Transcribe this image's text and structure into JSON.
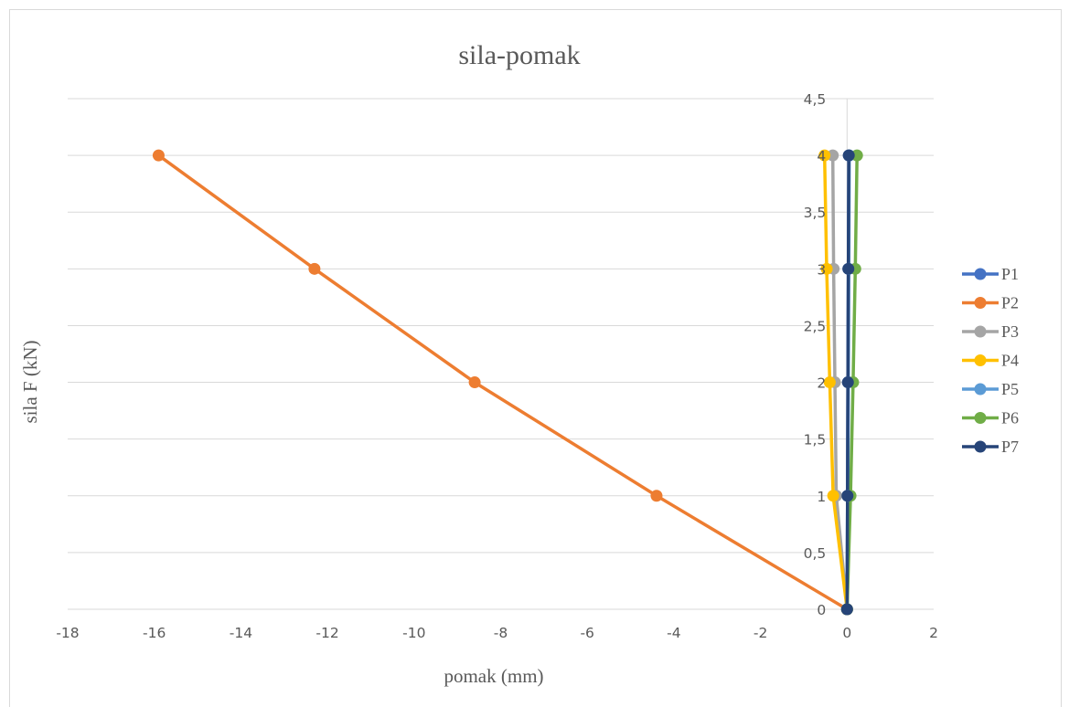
{
  "chart_data": {
    "type": "scatter",
    "title": "sila-pomak",
    "xlabel": "pomak (mm)",
    "ylabel": "sila F (kN)",
    "xlim": [
      -18,
      2
    ],
    "ylim": [
      0,
      4.5
    ],
    "x_ticks": [
      "-18",
      "-16",
      "-14",
      "-12",
      "-10",
      "-8",
      "-6",
      "-4",
      "-2",
      "0",
      "2"
    ],
    "y_ticks": [
      "0",
      "0,5",
      "1",
      "1,5",
      "2",
      "2,5",
      "3",
      "3,5",
      "4",
      "4,5"
    ],
    "grid": "horizontal",
    "legend_position": "right",
    "series": [
      {
        "name": "P1",
        "color": "#4472c4",
        "x": [
          0,
          0.01,
          0.02,
          0.03,
          0.04
        ],
        "y": [
          0,
          1,
          2,
          3,
          4
        ]
      },
      {
        "name": "P2",
        "color": "#ed7d31",
        "x": [
          0,
          -4.4,
          -8.6,
          -12.3,
          -15.9
        ],
        "y": [
          0,
          1,
          2,
          3,
          4
        ]
      },
      {
        "name": "P3",
        "color": "#a5a5a5",
        "x": [
          0,
          -0.25,
          -0.28,
          -0.31,
          -0.33
        ],
        "y": [
          0,
          1,
          2,
          3,
          4
        ]
      },
      {
        "name": "P4",
        "color": "#ffc000",
        "x": [
          0,
          -0.32,
          -0.4,
          -0.47,
          -0.52
        ],
        "y": [
          0,
          1,
          2,
          3,
          4
        ]
      },
      {
        "name": "P5",
        "color": "#5b9bd5",
        "x": [
          0,
          0.02,
          0.03,
          0.04,
          0.05
        ],
        "y": [
          0,
          1,
          2,
          3,
          4
        ]
      },
      {
        "name": "P6",
        "color": "#70ad47",
        "x": [
          0,
          0.08,
          0.14,
          0.19,
          0.23
        ],
        "y": [
          0,
          1,
          2,
          3,
          4
        ]
      },
      {
        "name": "P7",
        "color": "#264478",
        "x": [
          0,
          0.01,
          0.02,
          0.03,
          0.04
        ],
        "y": [
          0,
          1,
          2,
          3,
          4
        ]
      }
    ]
  }
}
